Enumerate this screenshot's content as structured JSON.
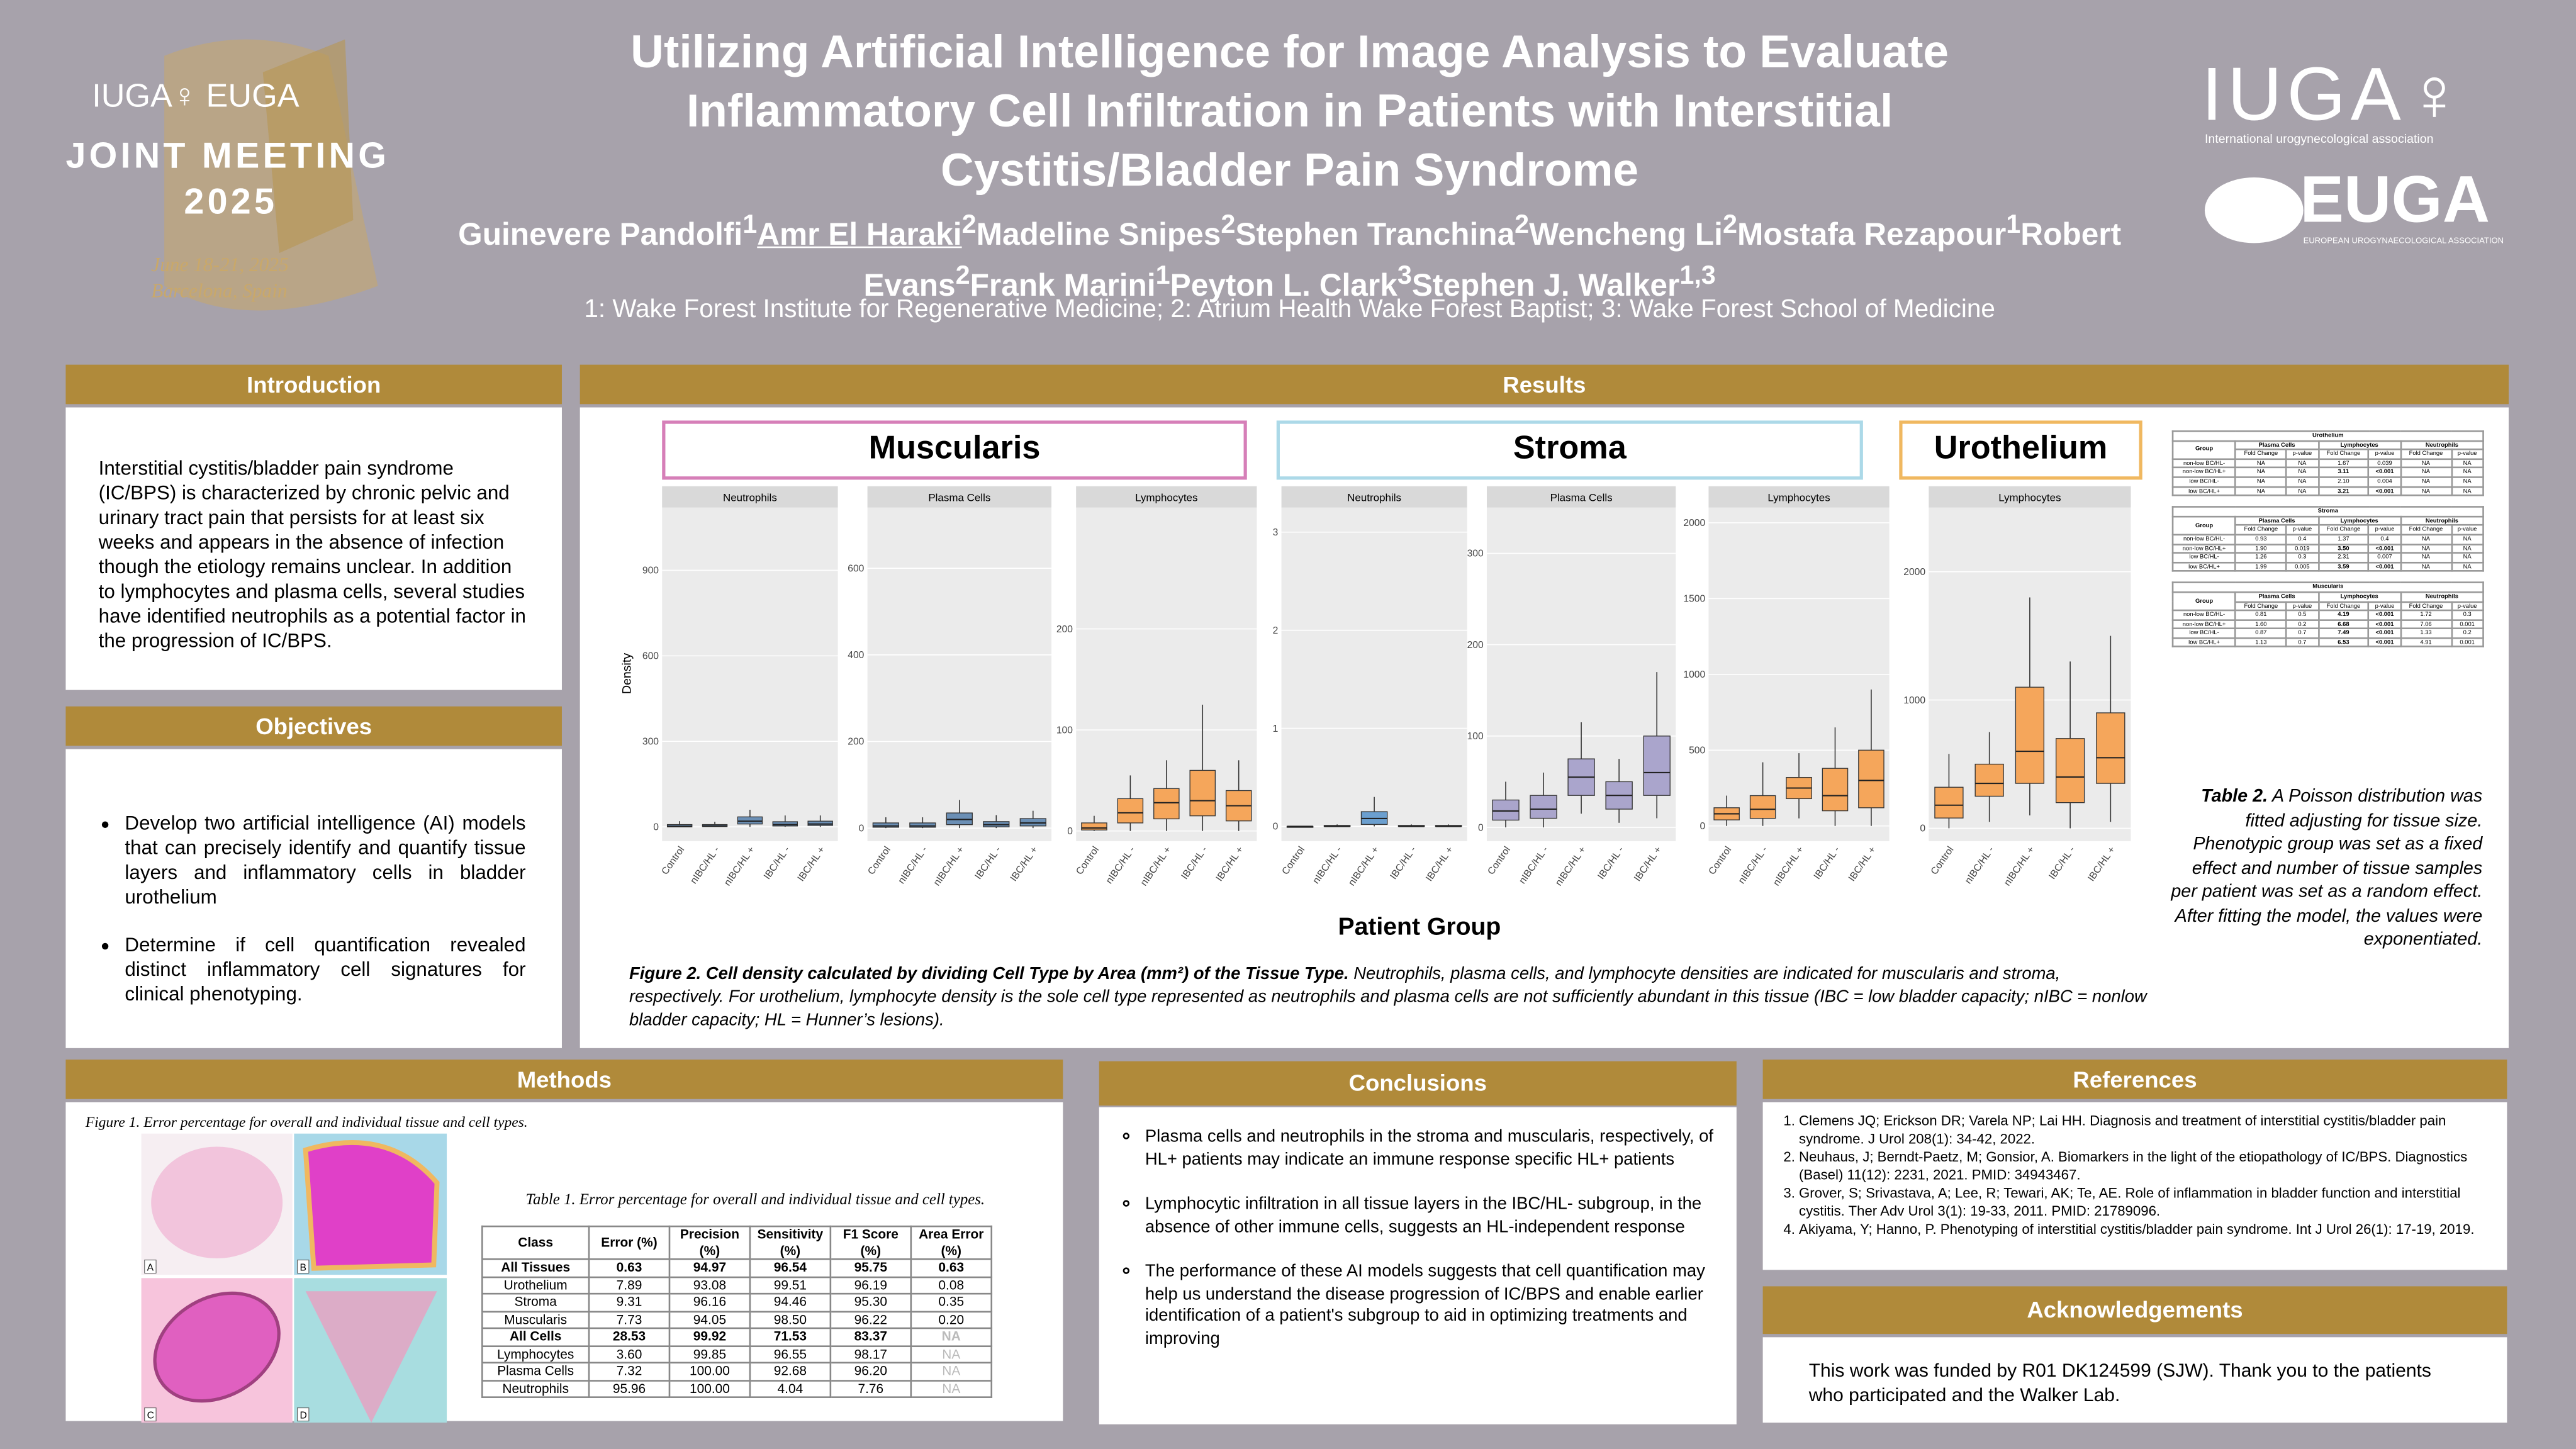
{
  "header": {
    "meeting_logo": [
      "IUGA♀ EUGA",
      "JOINT MEETING",
      "2025",
      "June 18-21, 2025",
      "Barcelona, Spain"
    ],
    "title": [
      "Utilizing Artificial Intelligence for Image Analysis to Evaluate",
      "Inflammatory Cell Infiltration in Patients with Interstitial",
      "Cystitis/Bladder Pain Syndrome"
    ],
    "authors": [
      {
        "name": "Guinevere Pandolfi",
        "sup": "1"
      },
      {
        "name": "Amr El Haraki",
        "sup": "2"
      },
      {
        "name": "Madeline Snipes",
        "sup": "2"
      },
      {
        "name": "Stephen Tranchina",
        "sup": "2"
      },
      {
        "name": "Wencheng Li",
        "sup": "2"
      },
      {
        "name": "Mostafa Rezapour",
        "sup": "1"
      },
      {
        "name": "Robert Evans",
        "sup": "2"
      },
      {
        "name": "Frank Marini",
        "sup": "1"
      },
      {
        "name": "Peyton L. Clark",
        "sup": "3"
      },
      {
        "name": "Stephen J. Walker",
        "sup": "1,3"
      }
    ],
    "affiliations": "1: Wake Forest Institute for Regenerative Medicine; 2: Atrium Health Wake Forest Baptist; 3: Wake Forest School of Medicine",
    "right_logos": [
      "IUGA♀",
      "International urogynecological association",
      "EUGA",
      "EUROPEAN UROGYNAECOLOGICAL ASSOCIATION"
    ]
  },
  "introduction": {
    "heading": "Introduction",
    "text": "Interstitial cystitis/bladder pain syndrome (IC/BPS) is characterized by chronic pelvic and urinary tract pain that persists for at least six weeks and appears in the absence of infection though the etiology remains unclear. In addition to lymphocytes and plasma cells, several studies have identified neutrophils as a potential factor in the progression of IC/BPS."
  },
  "objectives": {
    "heading": "Objectives",
    "items": [
      "Develop two artificial intelligence (AI) models that can precisely identify and quantify tissue layers and inflammatory cells in bladder urothelium",
      "Determine if cell quantification revealed distinct inflammatory cell signatures for clinical phenotyping."
    ]
  },
  "results": {
    "heading": "Results",
    "y_label": "Density",
    "x_label": "Patient Group",
    "categories": [
      "Control",
      "nIBC/HL -",
      "nIBC/HL +",
      "IBC/HL -",
      "IBC/HL +"
    ],
    "sections": [
      {
        "label": "Muscularis",
        "panels": [
          {
            "type": "boxplot",
            "title": "Neutrophils",
            "color": "#6b8fb5",
            "ylim": [
              -50,
              1120
            ],
            "yticks": [
              0,
              300,
              600,
              900
            ],
            "min": [
              0,
              0,
              0,
              0,
              0
            ],
            "q1": [
              0,
              1,
              10,
              3,
              5
            ],
            "median": [
              2,
              3,
              20,
              8,
              10
            ],
            "q3": [
              8,
              8,
              35,
              18,
              20
            ],
            "max": [
              20,
              18,
              60,
              40,
              40
            ]
          },
          {
            "type": "boxplot",
            "title": "Plasma Cells",
            "color": "#6b8fb5",
            "ylim": [
              -30,
              740
            ],
            "yticks": [
              0,
              200,
              400,
              600
            ],
            "min": [
              0,
              0,
              0,
              0,
              0
            ],
            "q1": [
              2,
              2,
              8,
              3,
              5
            ],
            "median": [
              5,
              5,
              20,
              8,
              12
            ],
            "q3": [
              12,
              12,
              35,
              15,
              22
            ],
            "max": [
              25,
              25,
              65,
              30,
              40
            ]
          },
          {
            "type": "boxplot",
            "title": "Lymphocytes",
            "color": "#f5a65b",
            "ylim": [
              -10,
              320
            ],
            "yticks": [
              0,
              100,
              200
            ],
            "min": [
              0,
              0,
              0,
              0,
              0
            ],
            "q1": [
              1,
              8,
              12,
              15,
              10
            ],
            "median": [
              3,
              18,
              28,
              30,
              25
            ],
            "q3": [
              8,
              32,
              42,
              60,
              40
            ],
            "max": [
              15,
              55,
              70,
              125,
              70
            ]
          }
        ]
      },
      {
        "label": "Stroma",
        "panels": [
          {
            "type": "boxplot",
            "title": "Neutrophils",
            "color": "#6b9fcf",
            "ylim": [
              -0.15,
              3.25
            ],
            "yticks": [
              0,
              1,
              2,
              3
            ],
            "min": [
              0,
              0,
              0,
              0,
              0
            ],
            "q1": [
              0,
              0,
              0.02,
              0,
              0
            ],
            "median": [
              0,
              0,
              0.08,
              0,
              0
            ],
            "q3": [
              0,
              0.01,
              0.15,
              0.01,
              0.01
            ],
            "max": [
              0,
              0.02,
              0.3,
              0.02,
              0.02
            ]
          },
          {
            "type": "boxplot",
            "title": "Plasma Cells",
            "color": "#aaa5cc",
            "ylim": [
              -15,
              350
            ],
            "yticks": [
              0,
              100,
              200,
              300
            ],
            "min": [
              0,
              0,
              15,
              5,
              10
            ],
            "q1": [
              8,
              10,
              35,
              20,
              35
            ],
            "median": [
              18,
              20,
              55,
              35,
              60
            ],
            "q3": [
              30,
              35,
              75,
              50,
              100
            ],
            "max": [
              50,
              60,
              115,
              75,
              170
            ]
          },
          {
            "type": "boxplot",
            "title": "Lymphocytes",
            "color": "#f5a65b",
            "ylim": [
              -100,
              2100
            ],
            "yticks": [
              0,
              500,
              1000,
              1500,
              2000
            ],
            "min": [
              0,
              0,
              50,
              0,
              0
            ],
            "q1": [
              40,
              50,
              180,
              100,
              120
            ],
            "median": [
              80,
              110,
              250,
              200,
              300
            ],
            "q3": [
              120,
              200,
              320,
              380,
              500
            ],
            "max": [
              200,
              420,
              480,
              650,
              900
            ]
          }
        ]
      },
      {
        "label": "Urothelium",
        "panels": [
          {
            "type": "boxplot",
            "title": "Lymphocytes",
            "color": "#f5a65b",
            "ylim": [
              -100,
              2500
            ],
            "yticks": [
              0,
              1000,
              2000
            ],
            "min": [
              0,
              50,
              100,
              0,
              50
            ],
            "q1": [
              80,
              250,
              350,
              200,
              350
            ],
            "median": [
              180,
              350,
              600,
              400,
              550
            ],
            "q3": [
              320,
              500,
              1100,
              700,
              900
            ],
            "max": [
              580,
              750,
              1800,
              1300,
              1500
            ]
          }
        ]
      }
    ],
    "figure_caption_bold": "Figure 2. Cell density calculated by dividing Cell Type by Area (mm²) of the Tissue Type.",
    "figure_caption": "Neutrophils, plasma cells, and lymphocyte densities are indicated for muscularis and stroma, respectively. For urothelium, lymphocyte density is the sole cell type represented as neutrophils and plasma cells are not sufficiently abundant in this tissue (IBC = low bladder capacity; nIBC = nonlow bladder capacity; HL = Hunner’s lesions).",
    "table2": {
      "header": [
        "Group",
        "Plasma Cells",
        "Lymphocytes",
        "Neutrophils"
      ],
      "subheader": [
        "Fold Change",
        "p-value",
        "Fold Change",
        "p-value",
        "Fold Change",
        "p-value"
      ],
      "blocks": [
        {
          "name": "Urothelium",
          "rows": [
            [
              "non-low BC/HL-",
              "NA",
              "NA",
              "1.67",
              "0.039",
              "NA",
              "NA"
            ],
            [
              "non-low BC/HL+",
              "NA",
              "NA",
              "3.11",
              "<0.001",
              "NA",
              "NA"
            ],
            [
              "low BC/HL-",
              "NA",
              "NA",
              "2.10",
              "0.004",
              "NA",
              "NA"
            ],
            [
              "low BC/HL+",
              "NA",
              "NA",
              "3.21",
              "<0.001",
              "NA",
              "NA"
            ]
          ]
        },
        {
          "name": "Stroma",
          "rows": [
            [
              "non-low BC/HL-",
              "0.93",
              "0.4",
              "1.37",
              "0.4",
              "NA",
              "NA"
            ],
            [
              "non-low BC/HL+",
              "1.90",
              "0.019",
              "3.50",
              "<0.001",
              "NA",
              "NA"
            ],
            [
              "low BC/HL-",
              "1.26",
              "0.3",
              "2.31",
              "0.007",
              "NA",
              "NA"
            ],
            [
              "low BC/HL+",
              "1.99",
              "0.005",
              "3.59",
              "<0.001",
              "NA",
              "NA"
            ]
          ]
        },
        {
          "name": "Muscularis",
          "rows": [
            [
              "non-low BC/HL-",
              "0.81",
              "0.5",
              "4.19",
              "<0.001",
              "1.72",
              "0.3"
            ],
            [
              "non-low BC/HL+",
              "1.60",
              "0.2",
              "6.68",
              "<0.001",
              "7.06",
              "0.001"
            ],
            [
              "low BC/HL-",
              "0.87",
              "0.7",
              "7.49",
              "<0.001",
              "1.33",
              "0.2"
            ],
            [
              "low BC/HL+",
              "1.13",
              "0.7",
              "6.53",
              "<0.001",
              "4.91",
              "0.001"
            ]
          ]
        }
      ],
      "caption_bold": "Table 2.",
      "caption": "A Poisson distribution was fitted adjusting for tissue size. Phenotypic group was set as a fixed effect and number of tissue samples per patient was set as a random effect. After fitting the model, the values were exponentiated."
    }
  },
  "methods": {
    "heading": "Methods",
    "figure_caption": "Figure 1. Error percentage for overall and individual tissue and cell types.",
    "figure_panels": [
      "A",
      "B",
      "C",
      "D"
    ],
    "table_caption": "Table 1. Error percentage for overall and individual tissue and cell types.",
    "table": {
      "header": [
        "Class",
        "Error (%)",
        "Precision (%)",
        "Sensitivity (%)",
        "F1 Score (%)",
        "Area Error (%)"
      ],
      "rows": [
        [
          "All Tissues",
          "0.63",
          "94.97",
          "96.54",
          "95.75",
          "0.63"
        ],
        [
          "Urothelium",
          "7.89",
          "93.08",
          "99.51",
          "96.19",
          "0.08"
        ],
        [
          "Stroma",
          "9.31",
          "96.16",
          "94.46",
          "95.30",
          "0.35"
        ],
        [
          "Muscularis",
          "7.73",
          "94.05",
          "98.50",
          "96.22",
          "0.20"
        ],
        [
          "All Cells",
          "28.53",
          "99.92",
          "71.53",
          "83.37",
          "NA"
        ],
        [
          "Lymphocytes",
          "3.60",
          "99.85",
          "96.55",
          "98.17",
          "NA"
        ],
        [
          "Plasma Cells",
          "7.32",
          "100.00",
          "92.68",
          "96.20",
          "NA"
        ],
        [
          "Neutrophils",
          "95.96",
          "100.00",
          "4.04",
          "7.76",
          "NA"
        ]
      ]
    }
  },
  "conclusions": {
    "heading": "Conclusions",
    "items": [
      "Plasma cells and neutrophils in the stroma and muscularis, respectively, of HL+ patients may indicate an immune response specific HL+ patients",
      "Lymphocytic infiltration in all tissue layers in the IBC/HL- subgroup, in the absence of other immune cells, suggests an HL-independent response",
      "The performance of these AI models suggests that cell quantification may help us understand the disease progression of IC/BPS and enable earlier identification of a patient's subgroup to aid in optimizing treatments and improving"
    ]
  },
  "references": {
    "heading": "References",
    "items": [
      "Clemens JQ; Erickson DR; Varela NP; Lai HH. Diagnosis and treatment of interstitial cystitis/bladder pain syndrome. J Urol 208(1): 34-42, 2022.",
      "Neuhaus, J; Berndt-Paetz, M; Gonsior, A. Biomarkers in the light of the etiopathology of IC/BPS. Diagnostics (Basel) 11(12): 2231, 2021. PMID: 34943467.",
      "Grover, S; Srivastava, A; Lee, R; Tewari, AK; Te, AE. Role of inflammation in bladder function and interstitial cystitis. Ther Adv Urol 3(1): 19-33, 2011. PMID: 21789096.",
      "Akiyama, Y; Hanno, P. Phenotyping of interstitial cystitis/bladder pain syndrome. Int J Urol 26(1): 17-19, 2019."
    ]
  },
  "acknowledgements": {
    "heading": "Acknowledgements",
    "text": "This work was funded by R01 DK124599 (SJW). Thank you to the patients who participated and the Walker Lab."
  }
}
